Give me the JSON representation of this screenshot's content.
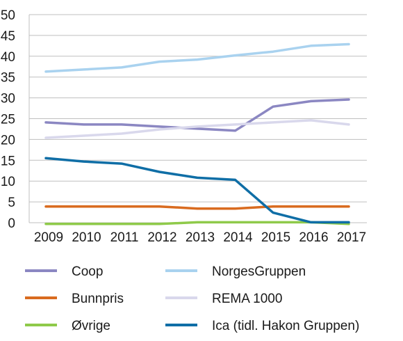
{
  "chart_data": {
    "type": "line",
    "title": "",
    "xlabel": "",
    "ylabel": "",
    "x": [
      "2009",
      "2010",
      "2011",
      "2012",
      "2013",
      "2014",
      "2015",
      "2016",
      "2017"
    ],
    "ylim": [
      0,
      50
    ],
    "yticks": [
      "0",
      "5",
      "10",
      "15",
      "20",
      "25",
      "30",
      "35",
      "40",
      "45",
      "50"
    ],
    "grid": true,
    "legend_position": "bottom",
    "series": [
      {
        "name": "Coop",
        "color": "#8b87c2",
        "values": [
          24.1,
          23.6,
          23.6,
          23.1,
          22.6,
          22.1,
          27.9,
          29.2,
          29.6
        ]
      },
      {
        "name": "NorgesGruppen",
        "color": "#a9d2ef",
        "values": [
          36.3,
          36.8,
          37.3,
          38.7,
          39.2,
          40.2,
          41.1,
          42.5,
          42.9
        ]
      },
      {
        "name": "Bunnpris",
        "color": "#d96b1f",
        "values": [
          3.9,
          3.9,
          3.9,
          3.9,
          3.4,
          3.4,
          3.9,
          3.9,
          3.9
        ]
      },
      {
        "name": "REMA 1000",
        "color": "#d9d8ec",
        "values": [
          20.4,
          20.9,
          21.4,
          22.4,
          23.1,
          23.6,
          24.1,
          24.6,
          23.6
        ]
      },
      {
        "name": "Øvrige",
        "color": "#8fca4a",
        "values": [
          -0.3,
          -0.3,
          -0.3,
          -0.3,
          0.1,
          0.1,
          0.1,
          0.1,
          -0.3
        ]
      },
      {
        "name": "Ica (tidl. Hakon Gruppen)",
        "color": "#0f6ea6",
        "values": [
          15.5,
          14.7,
          14.2,
          12.2,
          10.8,
          10.3,
          2.4,
          0.1,
          0.1
        ]
      }
    ]
  }
}
